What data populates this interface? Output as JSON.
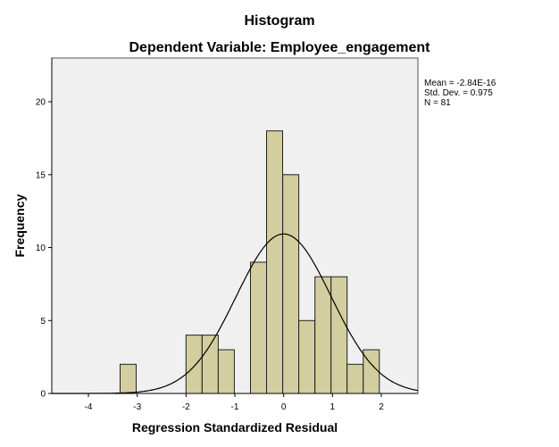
{
  "chart_data": {
    "type": "bar",
    "title": "Histogram",
    "subtitle": "Dependent Variable: Employee_engagement",
    "xlabel": "Regression Standardized Residual",
    "ylabel": "Frequency",
    "xlim": [
      -4.75,
      2.75
    ],
    "ylim": [
      0,
      23
    ],
    "x_ticks": [
      -4,
      -3,
      -2,
      -1,
      0,
      1,
      2
    ],
    "y_ticks": [
      0,
      5,
      10,
      15,
      20
    ],
    "bin_width": 0.33,
    "bins": [
      {
        "start": -3.35,
        "value": 2
      },
      {
        "start": -2.0,
        "value": 4
      },
      {
        "start": -1.67,
        "value": 4
      },
      {
        "start": -1.34,
        "value": 3
      },
      {
        "start": -0.68,
        "value": 9
      },
      {
        "start": -0.35,
        "value": 18
      },
      {
        "start": -0.02,
        "value": 15
      },
      {
        "start": 0.31,
        "value": 5
      },
      {
        "start": 0.64,
        "value": 8
      },
      {
        "start": 0.97,
        "value": 8
      },
      {
        "start": 1.3,
        "value": 2
      },
      {
        "start": 1.63,
        "value": 3
      }
    ],
    "normal_curve": {
      "mean": 0.0,
      "sd": 0.975,
      "n": 81
    },
    "stats_text": [
      "Mean = -2.84E-16",
      "Std. Dev. = 0.975",
      "N = 81"
    ]
  }
}
